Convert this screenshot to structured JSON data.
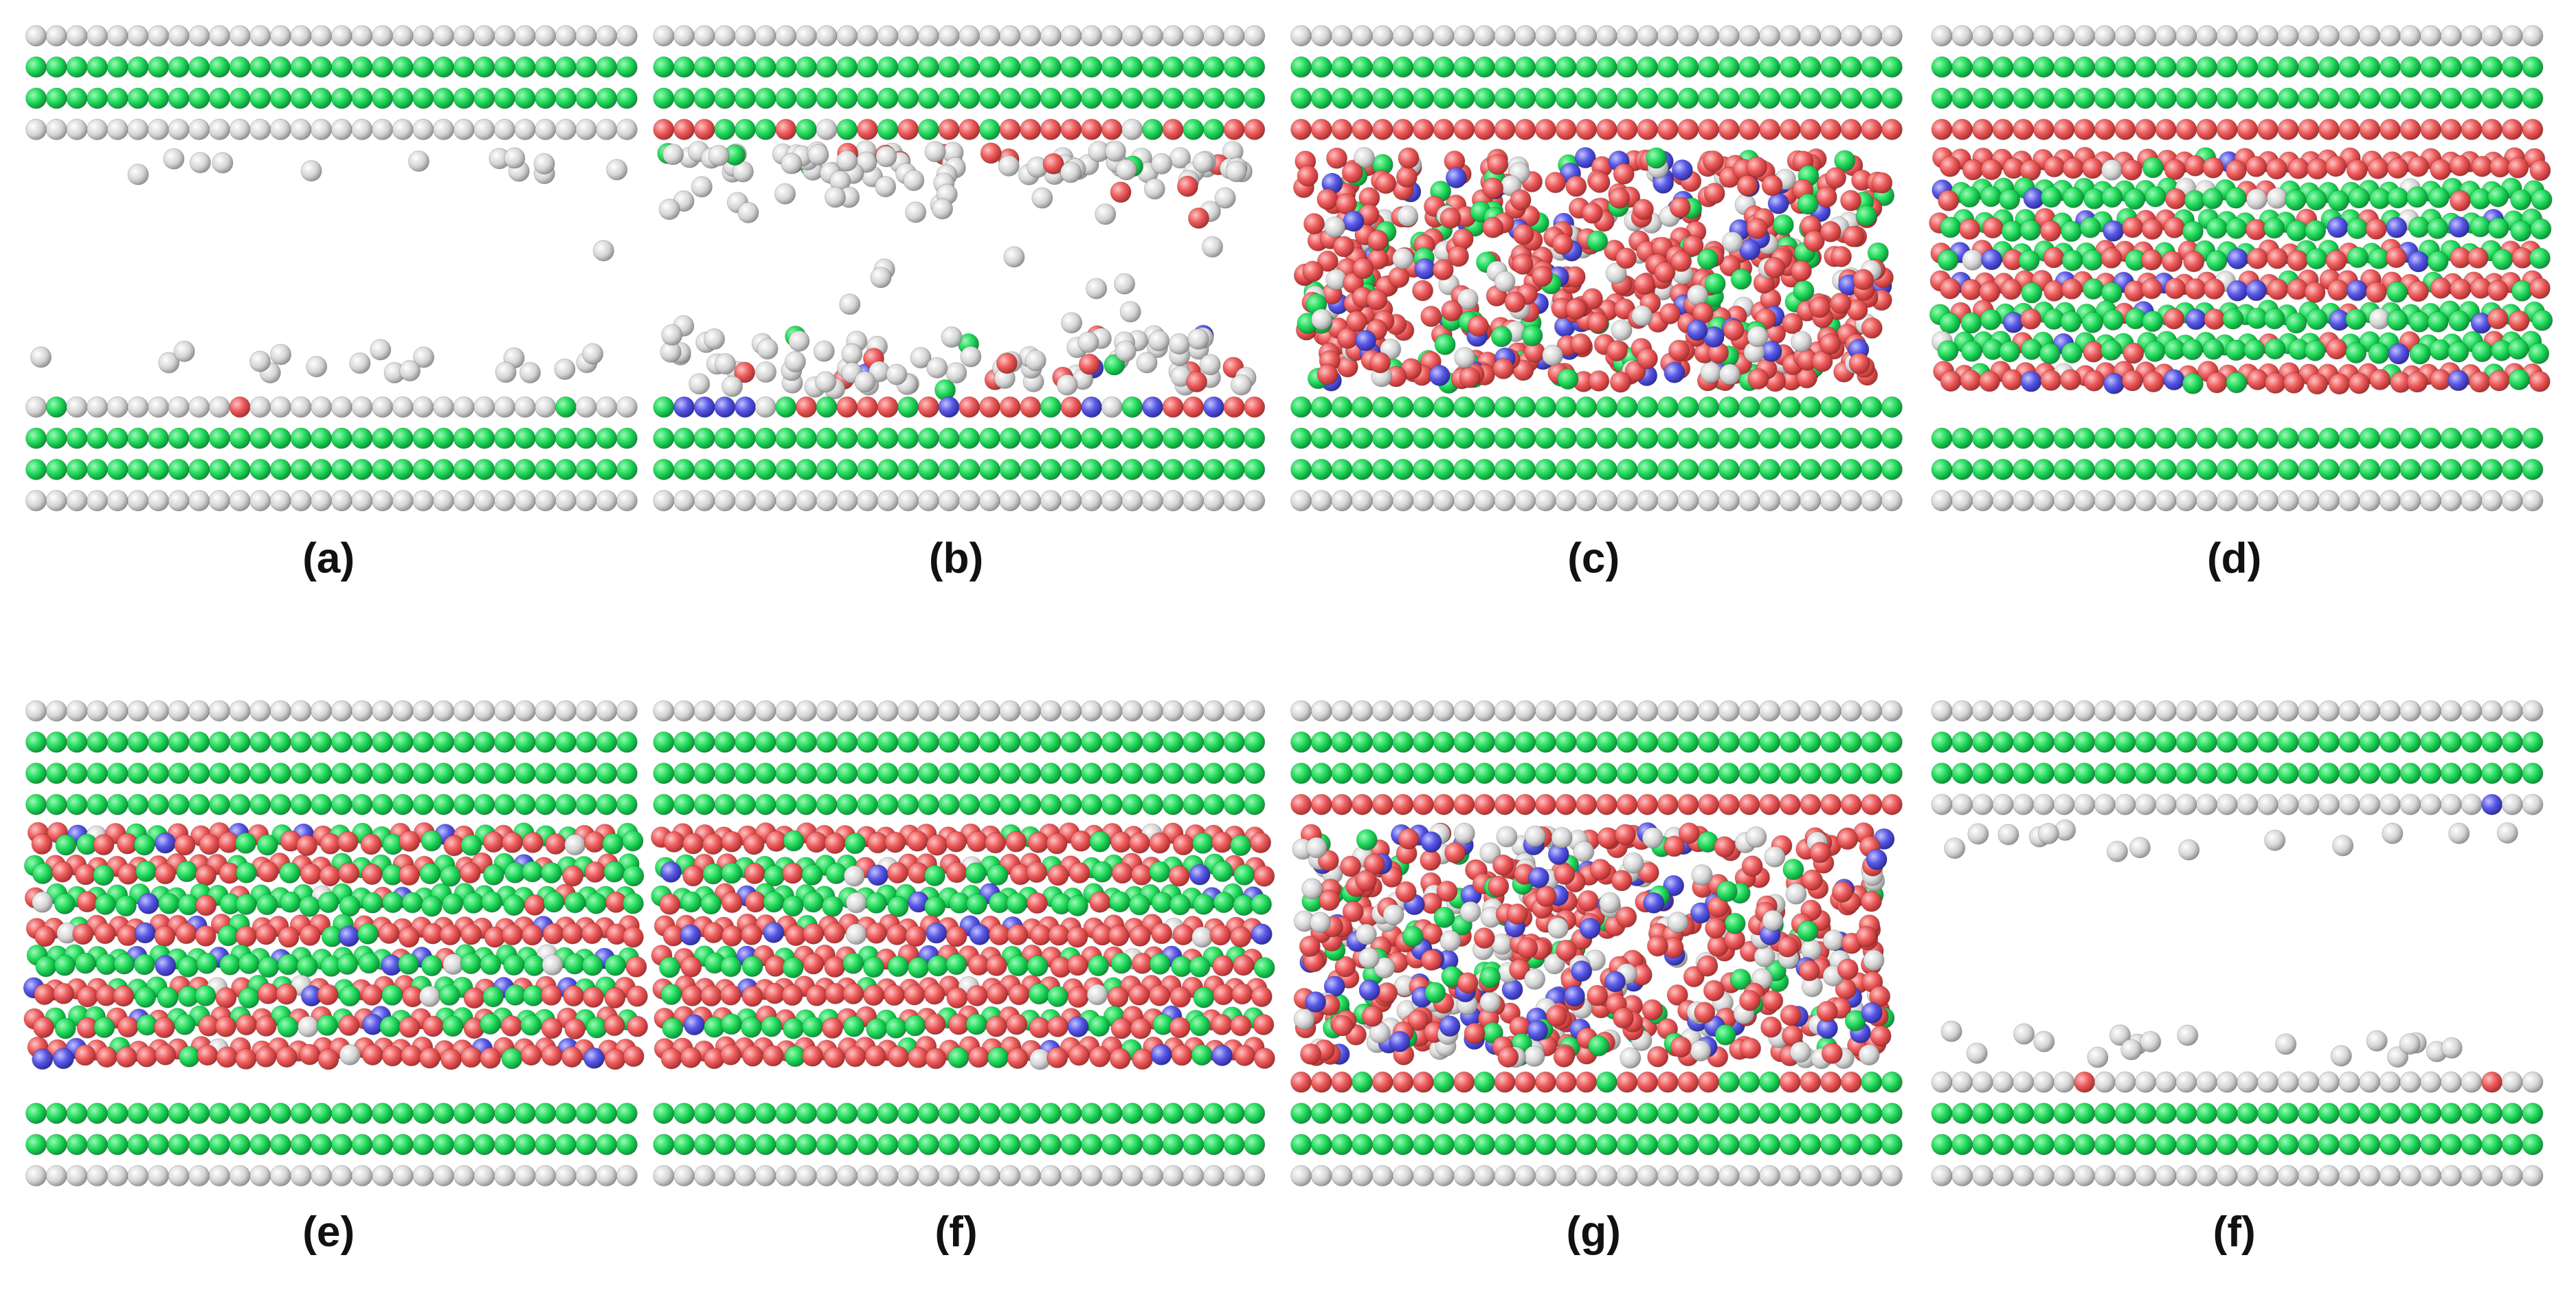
{
  "panels": [
    {
      "label": "(a)"
    },
    {
      "label": "(b)"
    },
    {
      "label": "(c)"
    },
    {
      "label": "(d)"
    },
    {
      "label": "(e)"
    },
    {
      "label": "(f)"
    },
    {
      "label": "(g)"
    },
    {
      "label": "(f)"
    }
  ]
}
